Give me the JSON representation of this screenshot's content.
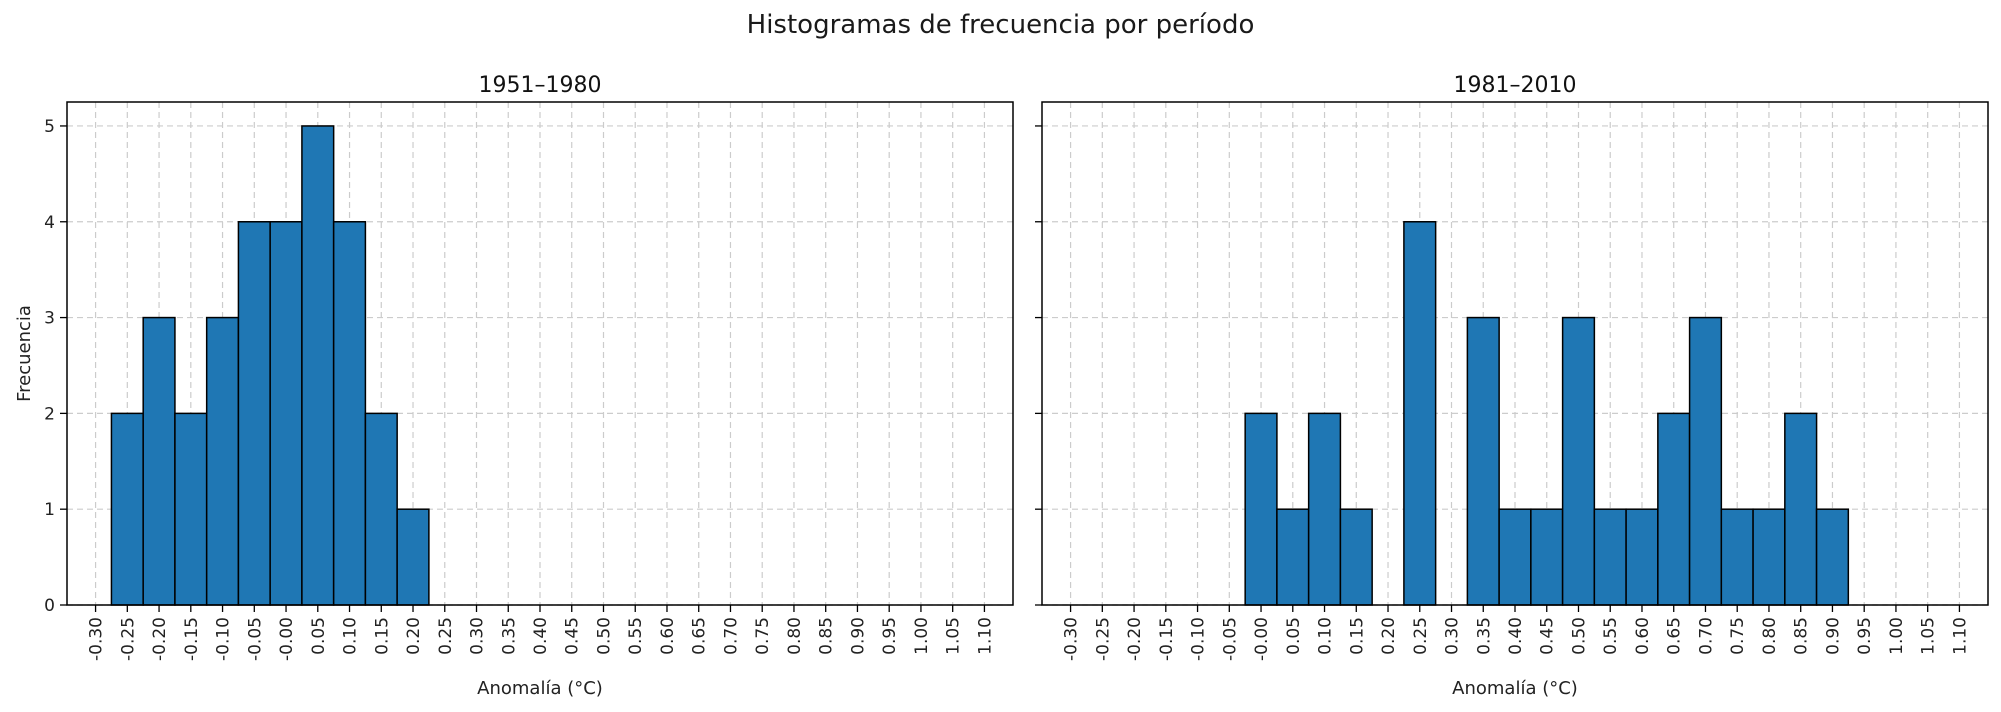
{
  "figure": {
    "title": "Histogramas de frecuencia por período"
  },
  "chart_data": [
    {
      "type": "bar",
      "title": "1951–1980",
      "xlabel": "Anomalía (°C)",
      "ylabel": "Frecuencia",
      "ylim": [
        0,
        5.25
      ],
      "xlim": [
        -0.345,
        1.145
      ],
      "yticks": [
        "0",
        "1",
        "2",
        "3",
        "4",
        "5"
      ],
      "xticks": [
        "-0.30",
        "-0.25",
        "-0.20",
        "-0.15",
        "-0.10",
        "-0.05",
        "-0.00",
        "0.05",
        "0.10",
        "0.15",
        "0.20",
        "0.25",
        "0.30",
        "0.35",
        "0.40",
        "0.45",
        "0.50",
        "0.55",
        "0.60",
        "0.65",
        "0.70",
        "0.75",
        "0.80",
        "0.85",
        "0.90",
        "0.95",
        "1.00",
        "1.05",
        "1.10"
      ],
      "bin_width": 0.05,
      "bin_centers": [
        -0.25,
        -0.2,
        -0.15,
        -0.1,
        -0.05,
        0.0,
        0.05,
        0.1,
        0.15,
        0.2
      ],
      "values": [
        2,
        3,
        2,
        3,
        4,
        4,
        5,
        4,
        2,
        1
      ],
      "bar_color": "#1f77b4",
      "edge_color": "#000000",
      "grid": true
    },
    {
      "type": "bar",
      "title": "1981–2010",
      "xlabel": "Anomalía (°C)",
      "ylabel": "",
      "ylim": [
        0,
        5.25
      ],
      "xlim": [
        -0.345,
        1.145
      ],
      "yticks": [],
      "xticks": [
        "-0.30",
        "-0.25",
        "-0.20",
        "-0.15",
        "-0.10",
        "-0.05",
        "-0.00",
        "0.05",
        "0.10",
        "0.15",
        "0.20",
        "0.25",
        "0.30",
        "0.35",
        "0.40",
        "0.45",
        "0.50",
        "0.55",
        "0.60",
        "0.65",
        "0.70",
        "0.75",
        "0.80",
        "0.85",
        "0.90",
        "0.95",
        "1.00",
        "1.05",
        "1.10"
      ],
      "bin_width": 0.05,
      "bin_centers": [
        0.0,
        0.05,
        0.1,
        0.15,
        0.2,
        0.25,
        0.3,
        0.35,
        0.4,
        0.45,
        0.5,
        0.55,
        0.6,
        0.65,
        0.7,
        0.75,
        0.8,
        0.85,
        0.9
      ],
      "values": [
        2,
        1,
        2,
        1,
        0,
        4,
        0,
        3,
        1,
        1,
        3,
        1,
        1,
        2,
        3,
        1,
        1,
        2,
        1
      ],
      "bar_color": "#1f77b4",
      "edge_color": "#000000",
      "grid": true
    }
  ]
}
